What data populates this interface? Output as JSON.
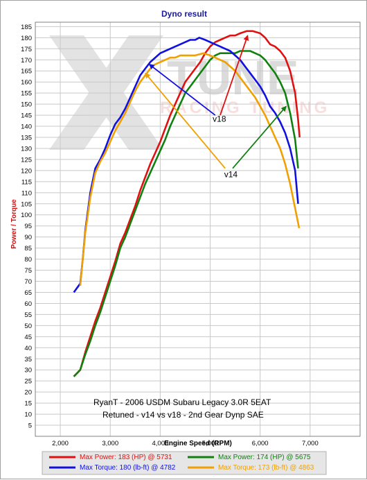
{
  "watermark": {
    "main": "TUNE",
    "sub": "RACING TUNING"
  },
  "chart_data": {
    "type": "line",
    "title": "Dyno result",
    "xlabel": "Engine Speed (RPM)",
    "ylabel": "Power / Torque",
    "xlim": [
      1500,
      8000
    ],
    "ylim": [
      0,
      187
    ],
    "xticks": [
      2000,
      3000,
      4000,
      5000,
      6000,
      7000
    ],
    "xtick_labels": [
      "2,000",
      "3,000",
      "4,000",
      "5,000",
      "6,000",
      "7,000"
    ],
    "yticks": [
      5,
      10,
      15,
      20,
      25,
      30,
      35,
      40,
      45,
      50,
      55,
      60,
      65,
      70,
      75,
      80,
      85,
      90,
      95,
      100,
      105,
      110,
      115,
      120,
      125,
      130,
      135,
      140,
      145,
      150,
      155,
      160,
      165,
      170,
      175,
      180,
      185
    ],
    "caption": [
      "RyanT - 2006 USDM Subaru Legacy 3.0R 5EAT",
      "Retuned - v14 vs v18 - 2nd Gear Dynp SAE"
    ],
    "series": [
      {
        "name": "Max Power: 183 (HP) @ 5731",
        "color": "#e01010",
        "points": [
          [
            2270,
            27
          ],
          [
            2400,
            30
          ],
          [
            2500,
            38
          ],
          [
            2600,
            45
          ],
          [
            2700,
            52
          ],
          [
            2800,
            58
          ],
          [
            2900,
            65
          ],
          [
            3000,
            72
          ],
          [
            3100,
            79
          ],
          [
            3200,
            87
          ],
          [
            3300,
            92
          ],
          [
            3400,
            98
          ],
          [
            3500,
            104
          ],
          [
            3600,
            111
          ],
          [
            3700,
            117
          ],
          [
            3800,
            123
          ],
          [
            3900,
            128
          ],
          [
            4000,
            133
          ],
          [
            4100,
            139
          ],
          [
            4200,
            145
          ],
          [
            4300,
            150
          ],
          [
            4400,
            155
          ],
          [
            4500,
            160
          ],
          [
            4600,
            163
          ],
          [
            4700,
            166
          ],
          [
            4800,
            169
          ],
          [
            4900,
            173
          ],
          [
            5000,
            176
          ],
          [
            5100,
            178
          ],
          [
            5200,
            179
          ],
          [
            5300,
            180
          ],
          [
            5400,
            181
          ],
          [
            5500,
            181
          ],
          [
            5600,
            182
          ],
          [
            5731,
            183
          ],
          [
            5850,
            183
          ],
          [
            6000,
            182
          ],
          [
            6100,
            180
          ],
          [
            6200,
            177
          ],
          [
            6300,
            176
          ],
          [
            6400,
            174
          ],
          [
            6500,
            171
          ],
          [
            6600,
            165
          ],
          [
            6700,
            155
          ],
          [
            6760,
            143
          ],
          [
            6790,
            135
          ]
        ]
      },
      {
        "name": "Max Power: 174 (HP) @ 5675",
        "color": "#108010",
        "points": [
          [
            2270,
            27
          ],
          [
            2400,
            30
          ],
          [
            2500,
            37
          ],
          [
            2600,
            43
          ],
          [
            2700,
            50
          ],
          [
            2800,
            56
          ],
          [
            2900,
            63
          ],
          [
            3000,
            70
          ],
          [
            3100,
            77
          ],
          [
            3200,
            85
          ],
          [
            3300,
            90
          ],
          [
            3400,
            96
          ],
          [
            3500,
            102
          ],
          [
            3600,
            108
          ],
          [
            3700,
            114
          ],
          [
            3800,
            119
          ],
          [
            3900,
            124
          ],
          [
            4000,
            129
          ],
          [
            4100,
            134
          ],
          [
            4200,
            140
          ],
          [
            4300,
            145
          ],
          [
            4400,
            150
          ],
          [
            4500,
            155
          ],
          [
            4600,
            158
          ],
          [
            4700,
            161
          ],
          [
            4800,
            164
          ],
          [
            4900,
            167
          ],
          [
            5000,
            170
          ],
          [
            5100,
            172
          ],
          [
            5200,
            173
          ],
          [
            5300,
            173
          ],
          [
            5400,
            173
          ],
          [
            5500,
            173
          ],
          [
            5600,
            174
          ],
          [
            5675,
            174
          ],
          [
            5800,
            174
          ],
          [
            5900,
            173
          ],
          [
            6000,
            172
          ],
          [
            6100,
            170
          ],
          [
            6200,
            167
          ],
          [
            6300,
            164
          ],
          [
            6400,
            160
          ],
          [
            6500,
            155
          ],
          [
            6600,
            146
          ],
          [
            6700,
            134
          ],
          [
            6760,
            121
          ]
        ]
      },
      {
        "name": "Max Torque: 180 (lb-ft) @ 4782",
        "color": "#1010e0",
        "points": [
          [
            2270,
            65
          ],
          [
            2400,
            69
          ],
          [
            2450,
            80
          ],
          [
            2500,
            93
          ],
          [
            2600,
            110
          ],
          [
            2700,
            121
          ],
          [
            2800,
            125
          ],
          [
            2900,
            130
          ],
          [
            3000,
            136
          ],
          [
            3100,
            141
          ],
          [
            3200,
            144
          ],
          [
            3300,
            148
          ],
          [
            3400,
            153
          ],
          [
            3500,
            158
          ],
          [
            3600,
            163
          ],
          [
            3700,
            166
          ],
          [
            3800,
            169
          ],
          [
            3900,
            171
          ],
          [
            4000,
            173
          ],
          [
            4100,
            174
          ],
          [
            4200,
            175
          ],
          [
            4300,
            176
          ],
          [
            4400,
            177
          ],
          [
            4500,
            178
          ],
          [
            4600,
            179
          ],
          [
            4700,
            179
          ],
          [
            4782,
            180
          ],
          [
            4900,
            179
          ],
          [
            5000,
            178
          ],
          [
            5100,
            177
          ],
          [
            5200,
            176
          ],
          [
            5300,
            175
          ],
          [
            5400,
            174
          ],
          [
            5500,
            172
          ],
          [
            5600,
            170
          ],
          [
            5700,
            167
          ],
          [
            5800,
            164
          ],
          [
            5900,
            161
          ],
          [
            6000,
            158
          ],
          [
            6100,
            154
          ],
          [
            6200,
            149
          ],
          [
            6300,
            146
          ],
          [
            6400,
            142
          ],
          [
            6500,
            137
          ],
          [
            6600,
            130
          ],
          [
            6700,
            120
          ],
          [
            6760,
            105
          ]
        ]
      },
      {
        "name": "Max Torque: 173 (lb-ft) @ 4863",
        "color": "#f0a000",
        "points": [
          [
            2400,
            68
          ],
          [
            2450,
            80
          ],
          [
            2500,
            92
          ],
          [
            2600,
            108
          ],
          [
            2700,
            119
          ],
          [
            2800,
            124
          ],
          [
            2900,
            128
          ],
          [
            3000,
            133
          ],
          [
            3100,
            138
          ],
          [
            3200,
            142
          ],
          [
            3300,
            146
          ],
          [
            3400,
            151
          ],
          [
            3500,
            156
          ],
          [
            3600,
            160
          ],
          [
            3700,
            163
          ],
          [
            3800,
            166
          ],
          [
            3900,
            168
          ],
          [
            4000,
            169
          ],
          [
            4100,
            170
          ],
          [
            4200,
            171
          ],
          [
            4300,
            171
          ],
          [
            4400,
            172
          ],
          [
            4500,
            172
          ],
          [
            4600,
            172
          ],
          [
            4700,
            172
          ],
          [
            4863,
            173
          ],
          [
            5000,
            172
          ],
          [
            5100,
            171
          ],
          [
            5200,
            170
          ],
          [
            5300,
            169
          ],
          [
            5400,
            167
          ],
          [
            5500,
            165
          ],
          [
            5600,
            162
          ],
          [
            5700,
            159
          ],
          [
            5800,
            156
          ],
          [
            5900,
            153
          ],
          [
            6000,
            149
          ],
          [
            6100,
            145
          ],
          [
            6200,
            140
          ],
          [
            6300,
            135
          ],
          [
            6400,
            130
          ],
          [
            6500,
            123
          ],
          [
            6600,
            114
          ],
          [
            6700,
            103
          ],
          [
            6780,
            94
          ]
        ]
      }
    ],
    "annotations": [
      {
        "text": "v18",
        "x": 5050,
        "y": 142,
        "arrows": [
          {
            "color": "#1010e0",
            "from": [
              5100,
              145
            ],
            "to": [
              3780,
              168
            ]
          },
          {
            "color": "#e01010",
            "from": [
              5200,
              145
            ],
            "to": [
              5750,
              181
            ]
          }
        ]
      },
      {
        "text": "v14",
        "x": 5280,
        "y": 117,
        "arrows": [
          {
            "color": "#f0a000",
            "from": [
              5300,
              121
            ],
            "to": [
              3700,
              164
            ]
          },
          {
            "color": "#108010",
            "from": [
              5450,
              121
            ],
            "to": [
              6520,
              149
            ]
          }
        ]
      }
    ]
  }
}
